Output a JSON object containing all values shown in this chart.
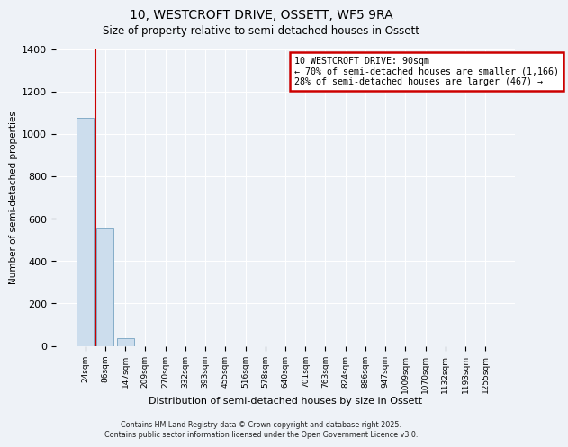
{
  "title": "10, WESTCROFT DRIVE, OSSETT, WF5 9RA",
  "subtitle": "Size of property relative to semi-detached houses in Ossett",
  "xlabel": "Distribution of semi-detached houses by size in Ossett",
  "ylabel": "Number of semi-detached properties",
  "bar_labels": [
    "24sqm",
    "86sqm",
    "147sqm",
    "209sqm",
    "270sqm",
    "332sqm",
    "393sqm",
    "455sqm",
    "516sqm",
    "578sqm",
    "640sqm",
    "701sqm",
    "763sqm",
    "824sqm",
    "886sqm",
    "947sqm",
    "1009sqm",
    "1070sqm",
    "1132sqm",
    "1193sqm",
    "1255sqm"
  ],
  "bar_values": [
    1075,
    555,
    35,
    0,
    0,
    0,
    0,
    0,
    0,
    0,
    0,
    0,
    0,
    0,
    0,
    0,
    0,
    0,
    0,
    0,
    0
  ],
  "bar_color": "#ccdded",
  "bar_edgecolor": "#85adc8",
  "ylim": [
    0,
    1400
  ],
  "yticks": [
    0,
    200,
    400,
    600,
    800,
    1000,
    1200,
    1400
  ],
  "property_line_x": 0.5,
  "property_line_color": "#cc0000",
  "annotation_title": "10 WESTCROFT DRIVE: 90sqm",
  "annotation_line2": "← 70% of semi-detached houses are smaller (1,166)",
  "annotation_line3": "28% of semi-detached houses are larger (467) →",
  "annotation_box_color": "#cc0000",
  "background_color": "#eef2f7",
  "grid_color": "#ffffff",
  "footer_line1": "Contains HM Land Registry data © Crown copyright and database right 2025.",
  "footer_line2": "Contains public sector information licensed under the Open Government Licence v3.0."
}
